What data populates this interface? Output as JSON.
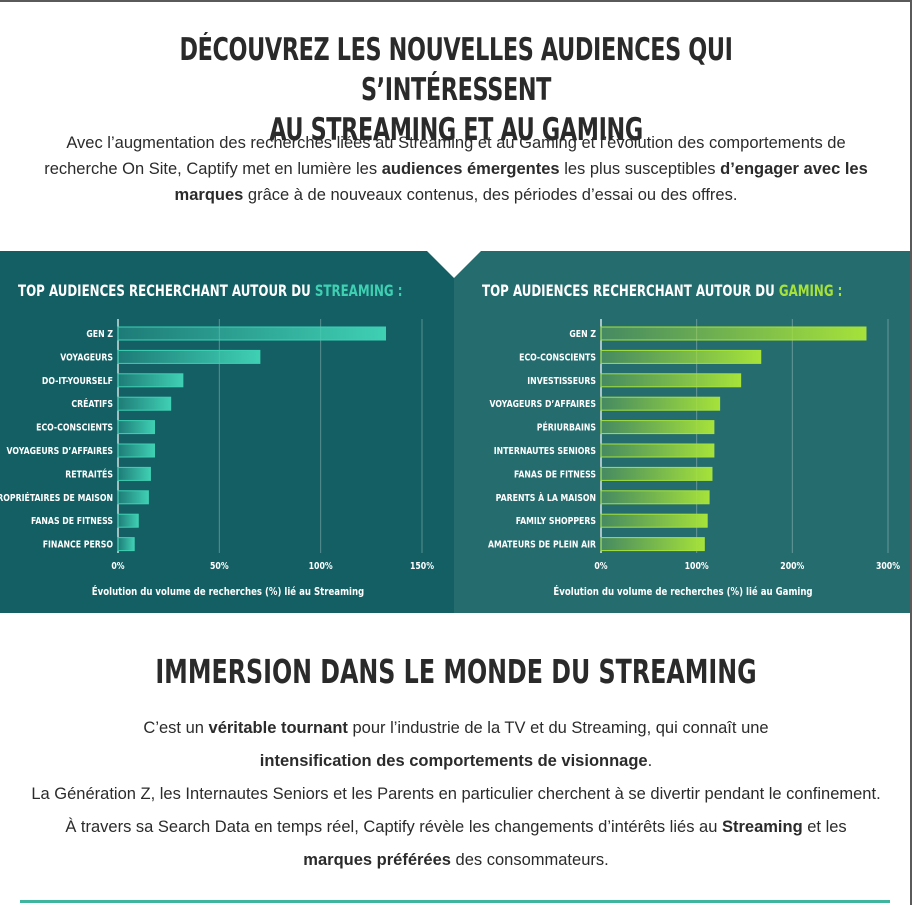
{
  "headline": {
    "line1": "DÉCOUVREZ LES NOUVELLES AUDIENCES QUI S’INTÉRESSENT",
    "line2": "AU STREAMING ET AU GAMING"
  },
  "intro": {
    "p1": "Avec l’augmentation des recherches liées au Streaming et au Gaming et l’évolution des comportements de recherche On Site, Captify met en lumière les ",
    "b1": "audiences émergentes",
    "p2": " les plus susceptibles ",
    "b2": "d’engager avec les marques",
    "p3": " grâce à de nouveaux contenus, des périodes d’essai ou des offres."
  },
  "colors": {
    "streaming_panel": "#135f63",
    "gaming_panel": "#256c6f",
    "streaming_accent": "#3fd0b4",
    "gaming_accent": "#a6e23a"
  },
  "chart_data": [
    {
      "type": "bar",
      "orientation": "horizontal",
      "title_prefix": "TOP AUDIENCES RECHERCHANT AUTOUR DU ",
      "title_highlight": "STREAMING :",
      "categories": [
        "GEN Z",
        "VOYAGEURS",
        "DO-IT-YOURSELF",
        "CRÉATIFS",
        "ECO-CONSCIENTS",
        "VOYAGEURS D’AFFAIRES",
        "RETRAITÉS",
        "PROPRIÉTAIRES DE MAISON",
        "FANAS DE FITNESS",
        "FINANCE PERSO"
      ],
      "values": [
        132,
        70,
        32,
        26,
        18,
        18,
        16,
        15,
        10,
        8
      ],
      "xlim": [
        0,
        150
      ],
      "ticks": [
        0,
        50,
        100,
        150
      ],
      "tick_labels": [
        "0%",
        "50%",
        "100%",
        "150%"
      ],
      "xlabel": "Évolution du volume de recherches (%) lié au Streaming",
      "grid": true,
      "bar_color": "#3fd0b4"
    },
    {
      "type": "bar",
      "orientation": "horizontal",
      "title_prefix": "TOP AUDIENCES RECHERCHANT AUTOUR DU ",
      "title_highlight": "GAMING :",
      "categories": [
        "GEN Z",
        "ECO-CONSCIENTS",
        "INVESTISSEURS",
        "VOYAGEURS D’AFFAIRES",
        "PÉRIURBAINS",
        "INTERNAUTES SENIORS",
        "FANAS DE FITNESS",
        "PARENTS À LA MAISON",
        "FAMILY SHOPPERS",
        "AMATEURS DE PLEIN AIR"
      ],
      "values": [
        277,
        167,
        146,
        124,
        118,
        118,
        116,
        113,
        111,
        108
      ],
      "xlim": [
        0,
        300
      ],
      "ticks": [
        0,
        100,
        200,
        300
      ],
      "tick_labels": [
        "0%",
        "100%",
        "200%",
        "300%"
      ],
      "xlabel": "Évolution du volume de recherches (%) lié au Gaming",
      "grid": true,
      "bar_color": "#a6e23a"
    }
  ],
  "section2": {
    "title": "IMMERSION DANS LE MONDE DU STREAMING",
    "l1a": "C’est un ",
    "l1b": "véritable tournant",
    "l1c": " pour l’industrie de la TV et du Streaming, qui connaît une",
    "l2b": "intensification des comportements de visionnage",
    "l2c": ".",
    "l3": "La Génération Z, les Internautes Seniors et les Parents en particulier cherchent à se divertir pendant le confinement. À travers sa Search Data en temps réel, Captify révèle les changements d’intérêts liés au ",
    "l3b": "Streaming",
    "l3c": " et les ",
    "l3d": "marques préférées",
    "l3e": " des consommateurs."
  }
}
